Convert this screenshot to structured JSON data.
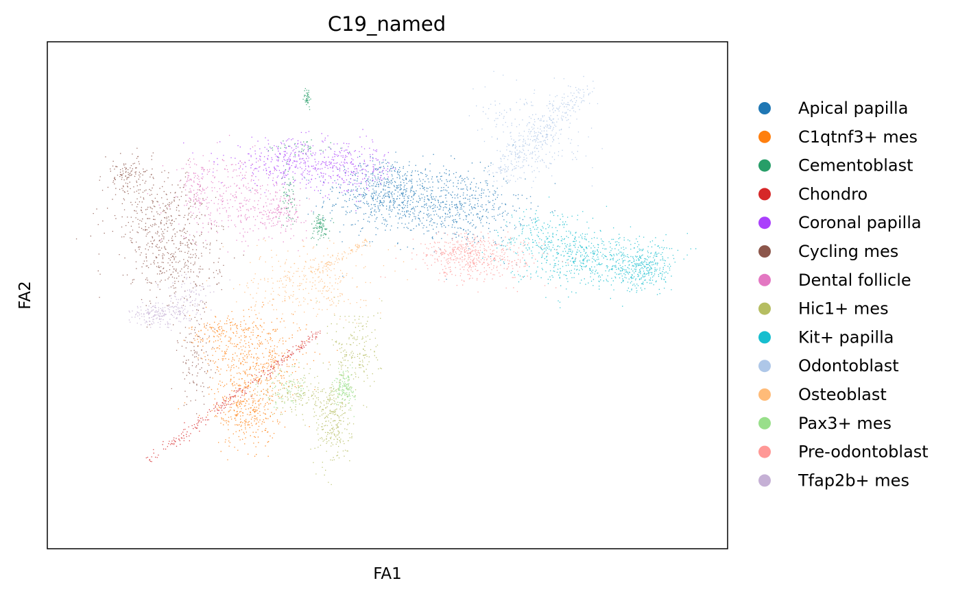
{
  "chart_data": {
    "type": "scatter",
    "title": "C19_named",
    "xlabel": "FA1",
    "ylabel": "FA2",
    "show_ticks": false,
    "grid": false,
    "legend_placement": "right-outside",
    "x_range": [
      -0.05,
      1.05
    ],
    "y_range": [
      -0.05,
      1.05
    ],
    "series": [
      {
        "name": "Apical papilla",
        "color": "#1f77b4",
        "clusters": [
          {
            "x": 0.52,
            "y": 0.71,
            "sx": 0.06,
            "sy": 0.04,
            "n": 520
          },
          {
            "x": 0.62,
            "y": 0.69,
            "sx": 0.05,
            "sy": 0.04,
            "n": 420
          },
          {
            "x": 0.49,
            "y": 0.74,
            "sx": 0.03,
            "sy": 0.03,
            "n": 200
          }
        ]
      },
      {
        "name": "C1qtnf3+ mes",
        "color": "#ff7f0e",
        "clusters": [
          {
            "x": 0.29,
            "y": 0.36,
            "sx": 0.04,
            "sy": 0.05,
            "n": 420
          },
          {
            "x": 0.27,
            "y": 0.25,
            "sx": 0.025,
            "sy": 0.04,
            "n": 300
          },
          {
            "x": 0.24,
            "y": 0.42,
            "sx": 0.03,
            "sy": 0.02,
            "n": 160
          }
        ]
      },
      {
        "name": "Cementoblast",
        "color": "#279e68",
        "clusters": [
          {
            "x": 0.39,
            "y": 0.65,
            "sx": 0.008,
            "sy": 0.015,
            "n": 90
          },
          {
            "x": 0.34,
            "y": 0.72,
            "sx": 0.006,
            "sy": 0.03,
            "n": 60
          },
          {
            "x": 0.37,
            "y": 0.93,
            "sx": 0.003,
            "sy": 0.01,
            "n": 40
          },
          {
            "x": 0.36,
            "y": 0.82,
            "sx": 0.03,
            "sy": 0.01,
            "n": 40
          }
        ]
      },
      {
        "name": "Chondro",
        "color": "#d62728",
        "clusters": [
          {
            "line": [
              [
                0.11,
                0.14
              ],
              [
                0.39,
                0.42
              ]
            ],
            "spread": 0.005,
            "n": 260
          }
        ]
      },
      {
        "name": "Coronal papilla",
        "color": "#aa40fc",
        "clusters": [
          {
            "x": 0.35,
            "y": 0.79,
            "sx": 0.06,
            "sy": 0.025,
            "n": 380
          },
          {
            "x": 0.44,
            "y": 0.77,
            "sx": 0.04,
            "sy": 0.025,
            "n": 200
          }
        ]
      },
      {
        "name": "Cycling mes",
        "color": "#8c564b",
        "clusters": [
          {
            "x": 0.13,
            "y": 0.67,
            "sx": 0.04,
            "sy": 0.05,
            "n": 320
          },
          {
            "x": 0.16,
            "y": 0.57,
            "sx": 0.035,
            "sy": 0.05,
            "n": 280
          },
          {
            "x": 0.19,
            "y": 0.36,
            "sx": 0.015,
            "sy": 0.05,
            "n": 110
          },
          {
            "x": 0.08,
            "y": 0.76,
            "sx": 0.02,
            "sy": 0.02,
            "n": 120
          }
        ]
      },
      {
        "name": "Dental follicle",
        "color": "#e377c2",
        "clusters": [
          {
            "x": 0.25,
            "y": 0.71,
            "sx": 0.045,
            "sy": 0.045,
            "n": 330
          },
          {
            "x": 0.33,
            "y": 0.68,
            "sx": 0.02,
            "sy": 0.02,
            "n": 140
          },
          {
            "x": 0.19,
            "y": 0.74,
            "sx": 0.01,
            "sy": 0.03,
            "n": 80
          }
        ]
      },
      {
        "name": "Hic1+ mes",
        "color": "#b5bd61",
        "clusters": [
          {
            "x": 0.41,
            "y": 0.23,
            "sx": 0.015,
            "sy": 0.05,
            "n": 280
          },
          {
            "x": 0.45,
            "y": 0.38,
            "sx": 0.02,
            "sy": 0.05,
            "n": 180
          },
          {
            "x": 0.35,
            "y": 0.29,
            "sx": 0.025,
            "sy": 0.025,
            "n": 140
          }
        ]
      },
      {
        "name": "Kit+ papilla",
        "color": "#17becf",
        "clusters": [
          {
            "x": 0.82,
            "y": 0.58,
            "sx": 0.06,
            "sy": 0.03,
            "n": 480
          },
          {
            "x": 0.91,
            "y": 0.56,
            "sx": 0.025,
            "sy": 0.025,
            "n": 300
          },
          {
            "x": 0.76,
            "y": 0.63,
            "sx": 0.04,
            "sy": 0.03,
            "n": 200
          }
        ]
      },
      {
        "name": "Odontoblast",
        "color": "#aec7e8",
        "clusters": [
          {
            "line": [
              [
                0.68,
                0.76
              ],
              [
                0.82,
                0.95
              ]
            ],
            "spread": 0.012,
            "n": 300
          },
          {
            "x": 0.72,
            "y": 0.86,
            "sx": 0.04,
            "sy": 0.04,
            "n": 140
          },
          {
            "x": 0.75,
            "y": 0.81,
            "sx": 0.04,
            "sy": 0.04,
            "n": 90
          }
        ]
      },
      {
        "name": "Osteoblast",
        "color": "#ffbb78",
        "clusters": [
          {
            "x": 0.37,
            "y": 0.53,
            "sx": 0.05,
            "sy": 0.04,
            "n": 300
          },
          {
            "line": [
              [
                0.38,
                0.55
              ],
              [
                0.47,
                0.62
              ]
            ],
            "spread": 0.004,
            "n": 80
          }
        ]
      },
      {
        "name": "Pax3+ mes",
        "color": "#98df8a",
        "clusters": [
          {
            "x": 0.43,
            "y": 0.3,
            "sx": 0.008,
            "sy": 0.02,
            "n": 150
          },
          {
            "x": 0.34,
            "y": 0.3,
            "sx": 0.02,
            "sy": 0.02,
            "n": 60
          }
        ]
      },
      {
        "name": "Pre-odontoblast",
        "color": "#ff9896",
        "clusters": [
          {
            "x": 0.65,
            "y": 0.58,
            "sx": 0.05,
            "sy": 0.025,
            "n": 400
          },
          {
            "x": 0.62,
            "y": 0.6,
            "sx": 0.03,
            "sy": 0.02,
            "n": 120
          }
        ]
      },
      {
        "name": "Tfap2b+ mes",
        "color": "#c5b0d5",
        "clusters": [
          {
            "x": 0.13,
            "y": 0.46,
            "sx": 0.025,
            "sy": 0.012,
            "n": 200
          },
          {
            "x": 0.18,
            "y": 0.5,
            "sx": 0.02,
            "sy": 0.02,
            "n": 80
          }
        ]
      }
    ]
  }
}
